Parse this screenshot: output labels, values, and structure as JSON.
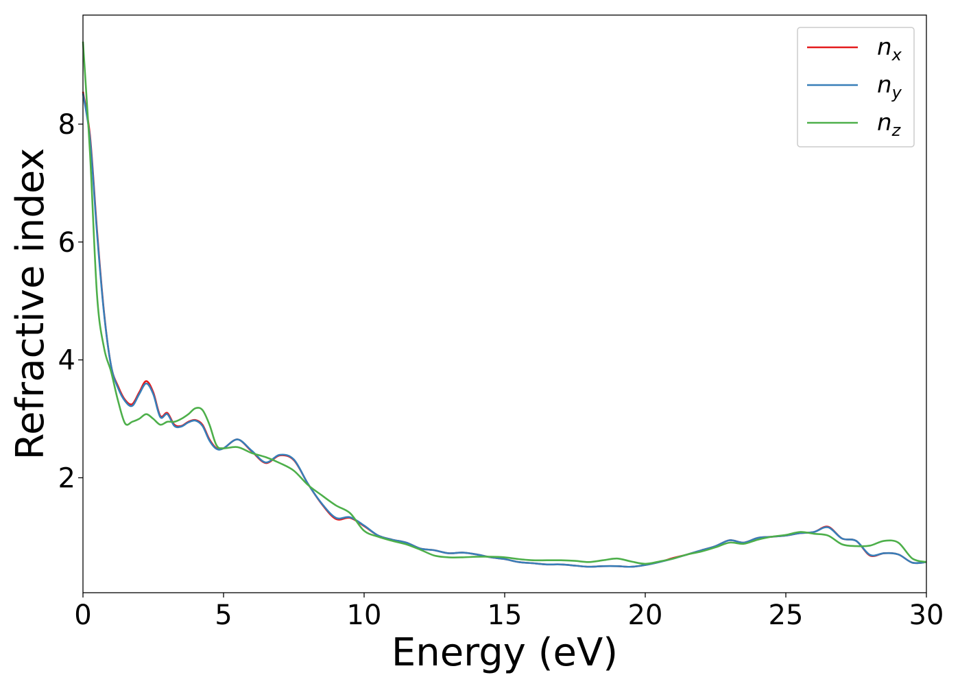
{
  "chart_data": {
    "type": "line",
    "title": "",
    "xlabel": "Energy (eV)",
    "ylabel": "Refractive index",
    "xlim": [
      0,
      30
    ],
    "ylim": [
      0.05,
      9.85
    ],
    "xticks": [
      0,
      5,
      10,
      15,
      20,
      25,
      30
    ],
    "yticks": [
      2,
      4,
      6,
      8
    ],
    "grid": false,
    "legend_position": "top-right",
    "colors": {
      "n_x": "#e41a1c",
      "n_y": "#377eb8",
      "n_z": "#4daf4a"
    },
    "series": [
      {
        "name": "n_x",
        "label_base": "n",
        "label_sub": "x",
        "color": "#e41a1c",
        "x": [
          0,
          0.25,
          0.5,
          0.75,
          1.0,
          1.25,
          1.5,
          1.75,
          2.0,
          2.25,
          2.5,
          2.75,
          3.0,
          3.25,
          3.5,
          3.75,
          4.0,
          4.25,
          4.5,
          4.75,
          5.0,
          5.5,
          6.0,
          6.5,
          7.0,
          7.5,
          8.0,
          8.5,
          9.0,
          9.5,
          10.0,
          10.5,
          11.0,
          11.5,
          12.0,
          12.5,
          13.0,
          13.5,
          14.0,
          14.5,
          15.0,
          15.5,
          16.0,
          16.5,
          17.0,
          17.5,
          18.0,
          18.5,
          19.0,
          19.5,
          20.0,
          20.5,
          21.0,
          21.5,
          22.0,
          22.5,
          23.0,
          23.5,
          24.0,
          24.5,
          25.0,
          25.5,
          26.0,
          26.5,
          27.0,
          27.5,
          28.0,
          28.5,
          29.0,
          29.5,
          30.0
        ],
        "values": [
          8.55,
          7.8,
          6.2,
          4.8,
          3.9,
          3.55,
          3.32,
          3.25,
          3.45,
          3.64,
          3.45,
          3.05,
          3.1,
          2.9,
          2.88,
          2.95,
          2.98,
          2.9,
          2.65,
          2.5,
          2.5,
          2.65,
          2.45,
          2.25,
          2.38,
          2.3,
          1.9,
          1.55,
          1.3,
          1.32,
          1.18,
          1.02,
          0.95,
          0.9,
          0.8,
          0.77,
          0.72,
          0.73,
          0.7,
          0.65,
          0.62,
          0.57,
          0.55,
          0.53,
          0.53,
          0.51,
          0.49,
          0.5,
          0.5,
          0.49,
          0.52,
          0.57,
          0.64,
          0.7,
          0.77,
          0.84,
          0.94,
          0.9,
          0.98,
          1.0,
          1.02,
          1.06,
          1.08,
          1.17,
          0.97,
          0.93,
          0.68,
          0.72,
          0.7,
          0.56,
          0.57
        ]
      },
      {
        "name": "n_y",
        "label_base": "n",
        "label_sub": "y",
        "color": "#377eb8",
        "x": [
          0,
          0.25,
          0.5,
          0.75,
          1.0,
          1.25,
          1.5,
          1.75,
          2.0,
          2.25,
          2.5,
          2.75,
          3.0,
          3.25,
          3.5,
          3.75,
          4.0,
          4.25,
          4.5,
          4.75,
          5.0,
          5.5,
          6.0,
          6.5,
          7.0,
          7.5,
          8.0,
          8.5,
          9.0,
          9.5,
          10.0,
          10.5,
          11.0,
          11.5,
          12.0,
          12.5,
          13.0,
          13.5,
          14.0,
          14.5,
          15.0,
          15.5,
          16.0,
          16.5,
          17.0,
          17.5,
          18.0,
          18.5,
          19.0,
          19.5,
          20.0,
          20.5,
          21.0,
          21.5,
          22.0,
          22.5,
          23.0,
          23.5,
          24.0,
          24.5,
          25.0,
          25.5,
          26.0,
          26.5,
          27.0,
          27.5,
          28.0,
          28.5,
          29.0,
          29.5,
          30.0
        ],
        "values": [
          8.52,
          7.75,
          6.15,
          4.78,
          3.9,
          3.52,
          3.3,
          3.22,
          3.42,
          3.6,
          3.42,
          3.03,
          3.08,
          2.88,
          2.87,
          2.94,
          2.97,
          2.88,
          2.63,
          2.49,
          2.5,
          2.65,
          2.46,
          2.26,
          2.39,
          2.31,
          1.9,
          1.56,
          1.32,
          1.33,
          1.19,
          1.02,
          0.95,
          0.9,
          0.8,
          0.77,
          0.72,
          0.73,
          0.7,
          0.65,
          0.62,
          0.57,
          0.55,
          0.53,
          0.53,
          0.51,
          0.49,
          0.5,
          0.5,
          0.49,
          0.52,
          0.57,
          0.63,
          0.7,
          0.77,
          0.84,
          0.94,
          0.9,
          0.98,
          1.0,
          1.02,
          1.06,
          1.08,
          1.16,
          0.97,
          0.93,
          0.69,
          0.72,
          0.7,
          0.56,
          0.57
        ]
      },
      {
        "name": "n_z",
        "label_base": "n",
        "label_sub": "z",
        "color": "#4daf4a",
        "x": [
          0,
          0.25,
          0.5,
          0.75,
          1.0,
          1.25,
          1.5,
          1.75,
          2.0,
          2.25,
          2.5,
          2.75,
          3.0,
          3.25,
          3.5,
          3.75,
          4.0,
          4.25,
          4.5,
          4.75,
          5.0,
          5.5,
          6.0,
          6.5,
          7.0,
          7.5,
          8.0,
          8.5,
          9.0,
          9.5,
          10.0,
          10.5,
          11.0,
          11.5,
          12.0,
          12.5,
          13.0,
          13.5,
          14.0,
          14.5,
          15.0,
          15.5,
          16.0,
          16.5,
          17.0,
          17.5,
          18.0,
          18.5,
          19.0,
          19.5,
          20.0,
          20.5,
          21.0,
          21.5,
          22.0,
          22.5,
          23.0,
          23.5,
          24.0,
          24.5,
          25.0,
          25.5,
          26.0,
          26.5,
          27.0,
          27.5,
          28.0,
          28.5,
          29.0,
          29.5,
          30.0
        ],
        "values": [
          9.4,
          7.5,
          5.1,
          4.2,
          3.8,
          3.3,
          2.92,
          2.95,
          3.0,
          3.08,
          3.0,
          2.9,
          2.95,
          2.95,
          3.0,
          3.08,
          3.18,
          3.15,
          2.9,
          2.55,
          2.5,
          2.52,
          2.42,
          2.35,
          2.25,
          2.12,
          1.88,
          1.7,
          1.53,
          1.4,
          1.1,
          1.0,
          0.93,
          0.87,
          0.78,
          0.68,
          0.65,
          0.65,
          0.66,
          0.66,
          0.65,
          0.62,
          0.6,
          0.6,
          0.6,
          0.59,
          0.57,
          0.6,
          0.63,
          0.58,
          0.54,
          0.58,
          0.63,
          0.7,
          0.75,
          0.82,
          0.9,
          0.88,
          0.95,
          1.0,
          1.03,
          1.08,
          1.05,
          1.02,
          0.87,
          0.84,
          0.85,
          0.93,
          0.9,
          0.63,
          0.57
        ]
      }
    ]
  }
}
